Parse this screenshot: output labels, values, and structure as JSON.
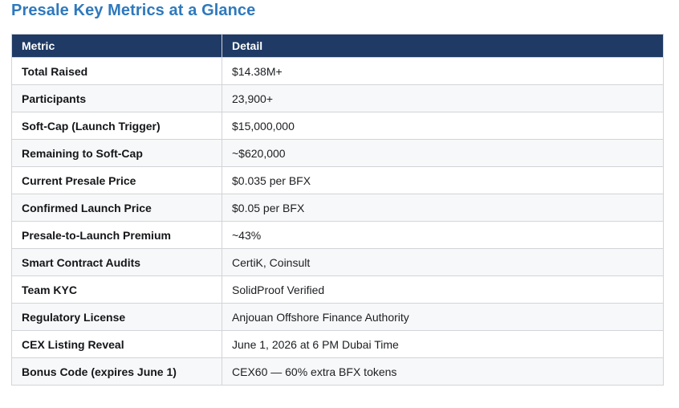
{
  "page": {
    "title": "Presale Key Metrics at a Glance"
  },
  "table": {
    "headers": [
      "Metric",
      "Detail"
    ],
    "rows": [
      {
        "metric": "Total Raised",
        "detail": "$14.38M+"
      },
      {
        "metric": "Participants",
        "detail": "23,900+"
      },
      {
        "metric": "Soft-Cap (Launch Trigger)",
        "detail": "$15,000,000"
      },
      {
        "metric": "Remaining to Soft-Cap",
        "detail": "~$620,000"
      },
      {
        "metric": "Current Presale Price",
        "detail": "$0.035 per BFX"
      },
      {
        "metric": "Confirmed Launch Price",
        "detail": "$0.05 per BFX"
      },
      {
        "metric": "Presale-to-Launch Premium",
        "detail": "~43%"
      },
      {
        "metric": "Smart Contract Audits",
        "detail": "CertiK, Coinsult"
      },
      {
        "metric": "Team KYC",
        "detail": "SolidProof Verified"
      },
      {
        "metric": "Regulatory License",
        "detail": "Anjouan Offshore Finance Authority"
      },
      {
        "metric": "CEX Listing Reveal",
        "detail": "June 1, 2026 at 6 PM Dubai Time"
      },
      {
        "metric": "Bonus Code (expires June 1)",
        "detail": "CEX60 — 60% extra BFX tokens"
      }
    ]
  },
  "colors": {
    "title": "#2E79BD",
    "header_bg": "#1F3A64",
    "header_text": "#FFFFFF",
    "row_alt_bg": "#F7F8F9",
    "border": "#D2D4D8",
    "cell_text": "#1C1E21"
  }
}
